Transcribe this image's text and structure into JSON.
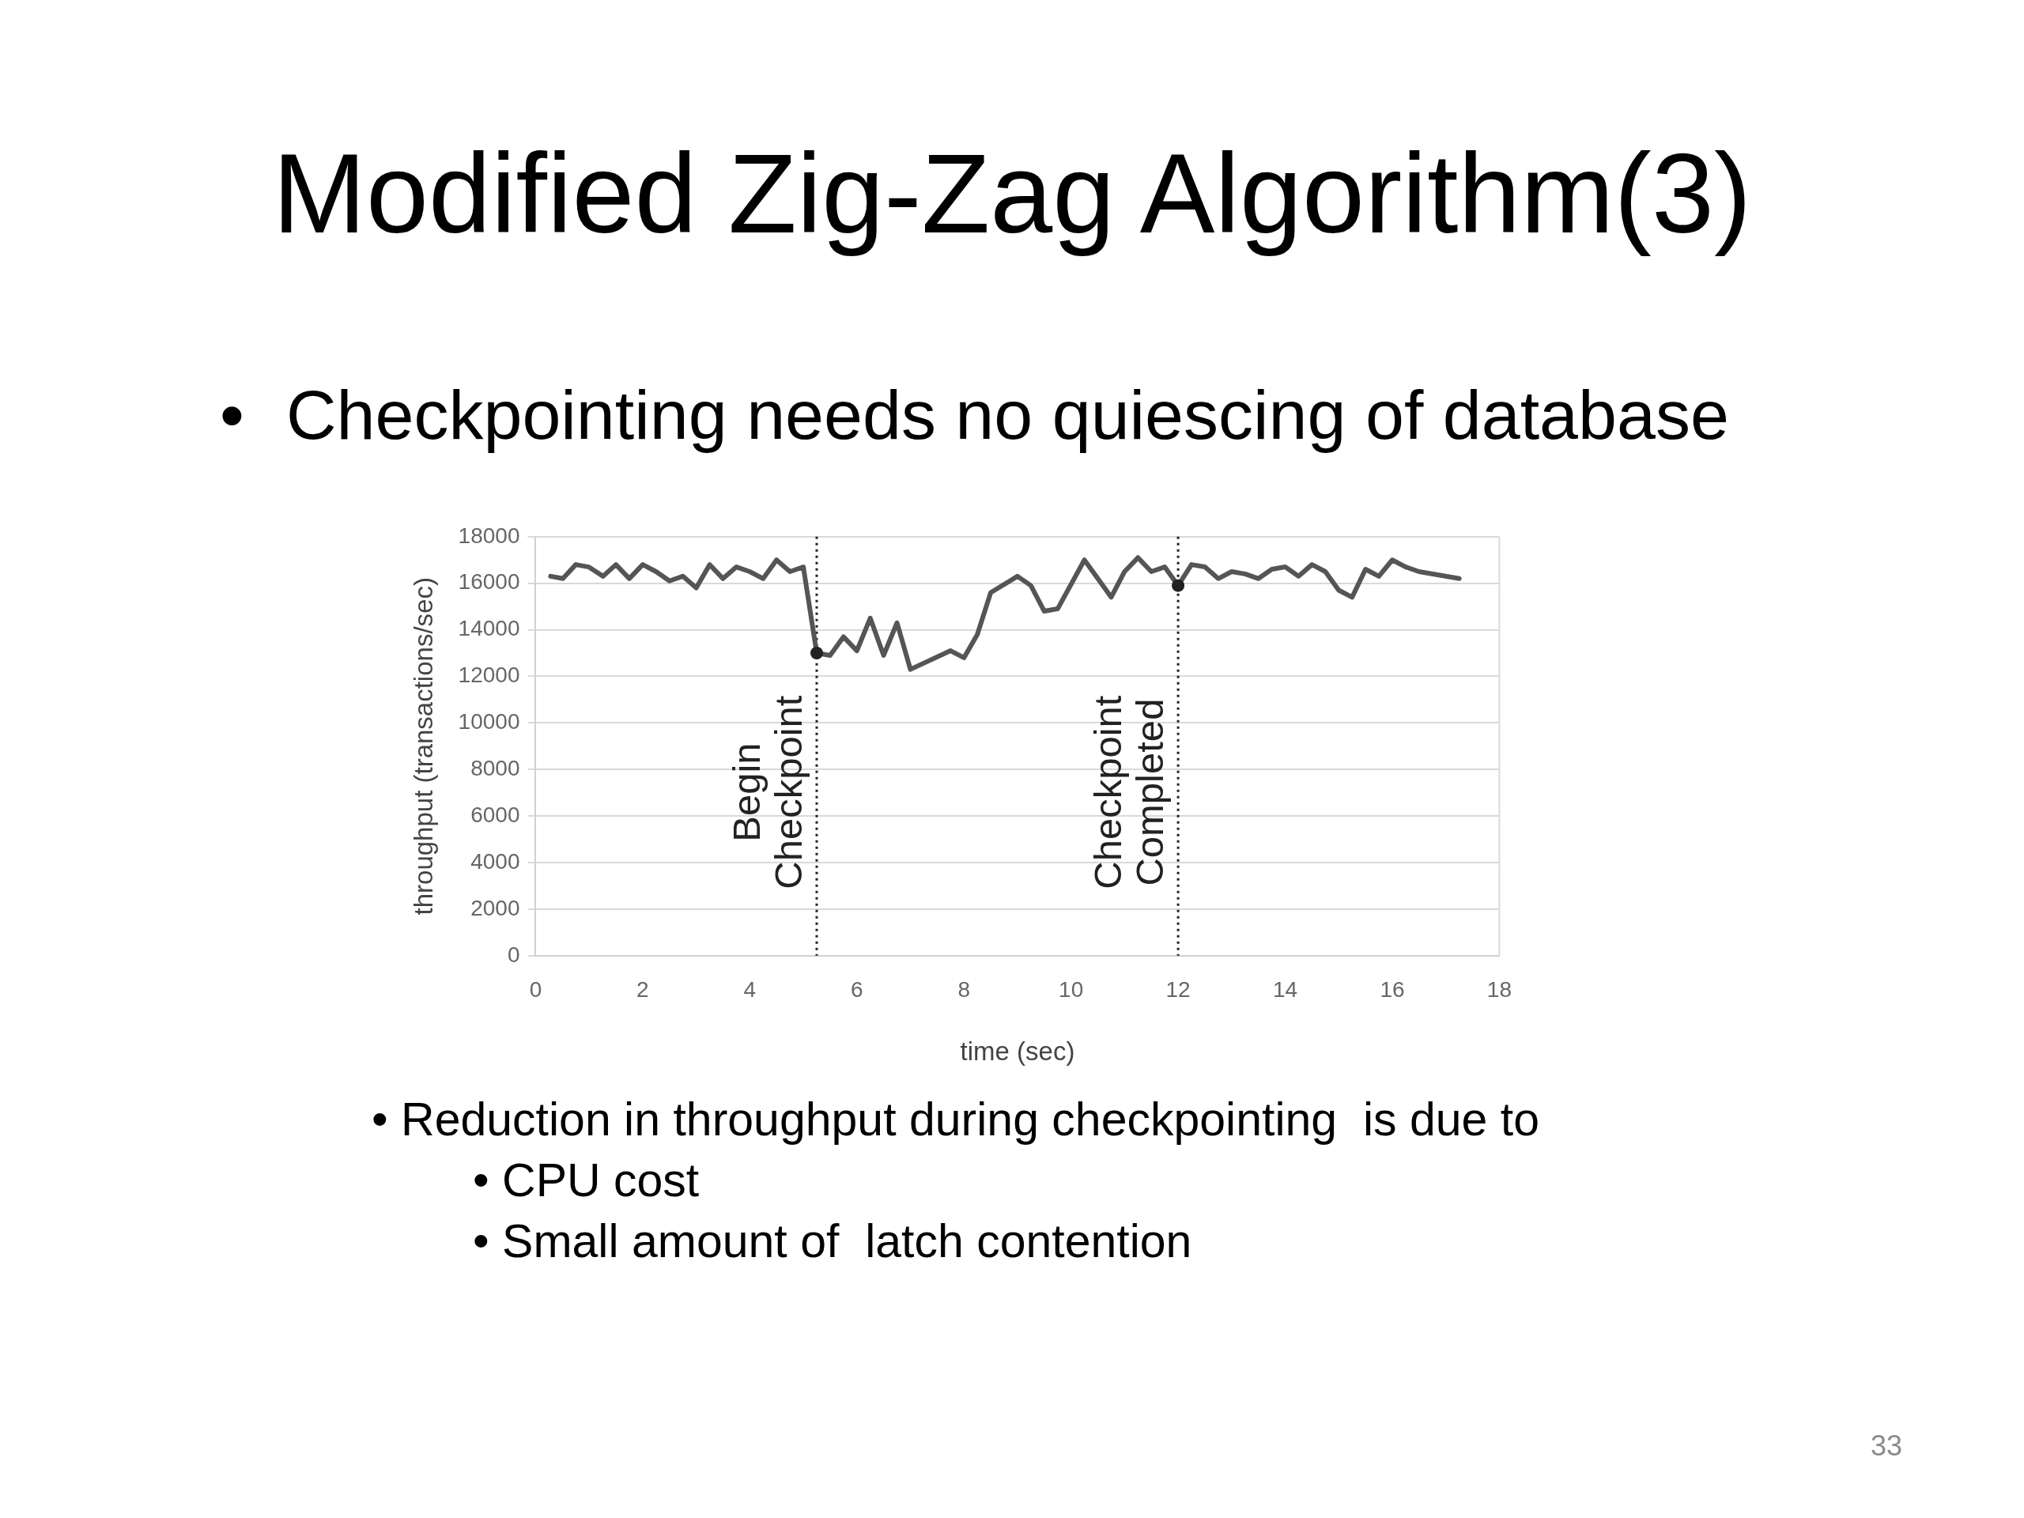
{
  "chart_data": {
    "type": "line",
    "title": "Modified Zig-Zag Algorithm(3)",
    "subtitle": "•\tCheckpointing needs no quiescing of database",
    "xlabel": "time (sec)",
    "ylabel": "throughput (transactions/sec)",
    "x": [
      0.28,
      0.51,
      0.75,
      0.99,
      1.26,
      1.5,
      1.75,
      2.0,
      2.25,
      2.5,
      2.75,
      3.0,
      3.25,
      3.5,
      3.75,
      4.0,
      4.25,
      4.5,
      4.75,
      5.0,
      5.25,
      5.5,
      5.75,
      6.0,
      6.25,
      6.5,
      6.75,
      7.0,
      7.75,
      8.0,
      8.25,
      8.5,
      9.0,
      9.25,
      9.5,
      9.75,
      10.25,
      10.75,
      11.0,
      11.25,
      11.5,
      11.75,
      12.0,
      12.25,
      12.5,
      12.75,
      13.0,
      13.25,
      13.5,
      13.75,
      14.0,
      14.25,
      14.5,
      14.75,
      15.0,
      15.25,
      15.5,
      15.75,
      16.0,
      16.25,
      16.5,
      17.25
    ],
    "series": [
      {
        "color": "#555555",
        "values": [
          16300,
          16200,
          16800,
          16700,
          16300,
          16800,
          16200,
          16800,
          16500,
          16100,
          16300,
          15800,
          16800,
          16200,
          16700,
          16500,
          16200,
          17000,
          16500,
          16700,
          13000,
          12900,
          13700,
          13100,
          14500,
          12900,
          14300,
          12300,
          13100,
          12800,
          13800,
          15600,
          16300,
          15900,
          14800,
          14900,
          17000,
          15400,
          16500,
          17100,
          16500,
          16700,
          15900,
          16800,
          16700,
          16200,
          16500,
          16400,
          16200,
          16600,
          16700,
          16300,
          16800,
          16500,
          15700,
          15400,
          16600,
          16300,
          17000,
          16700,
          16500,
          16200
        ]
      },
      {
        "type": "scatter",
        "color": "#222222",
        "marker": "circle",
        "x": [
          5.25,
          12
        ],
        "values": [
          13000,
          15900
        ]
      }
    ],
    "marker": "none",
    "line_style": "solid",
    "xlim": [
      0,
      18
    ],
    "xticks": [
      0,
      2,
      4,
      6,
      8,
      10,
      12,
      14,
      16,
      18
    ],
    "ylim": [
      0,
      18000
    ],
    "yticks": [
      0,
      2000,
      4000,
      6000,
      8000,
      10000,
      12000,
      14000,
      16000,
      18000
    ],
    "grid": "y",
    "ref_lines": [
      {
        "axis": "x",
        "value": 5.25,
        "label": "Begin Checkpoint",
        "color": "#222222",
        "line_style": "dotted"
      },
      {
        "axis": "x",
        "value": 12,
        "label": "Checkpoint Completed",
        "color": "#222222",
        "line_style": "dotted"
      }
    ],
    "annotations": [
      "• Reduction in throughput during checkpointing  is due to",
      "• CPU cost",
      "• Small amount of  latch contention",
      "33"
    ]
  }
}
